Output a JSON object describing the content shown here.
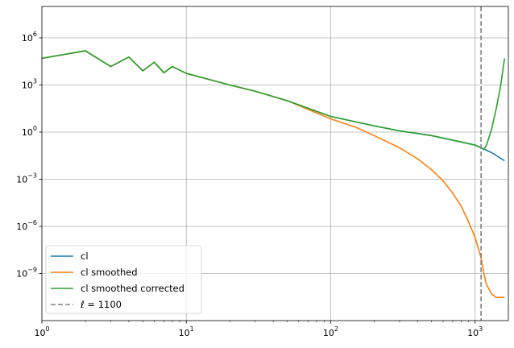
{
  "chart_data": {
    "type": "line",
    "title": "",
    "xlabel": "",
    "ylabel": "",
    "xscale": "log",
    "yscale": "log",
    "xlim": [
      1,
      1700
    ],
    "ylim": [
      1e-12,
      100000000.0
    ],
    "grid": true,
    "legend_position": "lower-left",
    "x_ticks": [
      {
        "value": 1,
        "base": "10",
        "exp": "0"
      },
      {
        "value": 10,
        "base": "10",
        "exp": "1"
      },
      {
        "value": 100,
        "base": "10",
        "exp": "2"
      },
      {
        "value": 1000,
        "base": "10",
        "exp": "3"
      }
    ],
    "y_ticks": [
      {
        "value": 1000000.0,
        "base": "10",
        "exp": "6"
      },
      {
        "value": 1000.0,
        "base": "10",
        "exp": "3"
      },
      {
        "value": 1,
        "base": "10",
        "exp": "0"
      },
      {
        "value": 0.001,
        "base": "10",
        "exp": "−3"
      },
      {
        "value": 1e-06,
        "base": "10",
        "exp": "−6"
      },
      {
        "value": 1e-09,
        "base": "10",
        "exp": "−9"
      }
    ],
    "vline": {
      "x": 1100,
      "label": "ℓ = 1100",
      "color": "#808080",
      "style": "dashed"
    },
    "series": [
      {
        "name": "cl",
        "color": "#1f77b4",
        "x": [
          1,
          2,
          3,
          4,
          5,
          6,
          7,
          8,
          10,
          20,
          30,
          50,
          100,
          200,
          300,
          500,
          1000,
          1100,
          1300,
          1600
        ],
        "y": [
          50000,
          150000,
          15000,
          60000,
          8000,
          28000,
          6000,
          15000,
          5500,
          1000,
          400,
          100,
          10,
          2.5,
          1.2,
          0.6,
          0.15,
          0.1,
          0.05,
          0.015
        ]
      },
      {
        "name": "cl smoothed",
        "color": "#ff7f0e",
        "x": [
          1,
          2,
          3,
          4,
          5,
          6,
          7,
          8,
          10,
          20,
          30,
          50,
          100,
          150,
          200,
          300,
          400,
          500,
          600,
          700,
          800,
          900,
          1000,
          1100,
          1150,
          1200,
          1300,
          1400,
          1600
        ],
        "y": [
          50000,
          150000,
          15000,
          60000,
          8000,
          28000,
          6000,
          15000,
          5500,
          1000,
          400,
          100,
          7,
          2,
          0.6,
          0.1,
          0.02,
          0.004,
          0.0008,
          0.00013,
          2e-05,
          2e-06,
          2e-07,
          1e-08,
          1e-09,
          2e-10,
          5e-11,
          3e-11,
          3e-11
        ]
      },
      {
        "name": "cl smoothed corrected",
        "color": "#2ca02c",
        "x": [
          1,
          2,
          3,
          4,
          5,
          6,
          7,
          8,
          10,
          20,
          30,
          50,
          100,
          200,
          300,
          500,
          1000,
          1100,
          1150,
          1200,
          1300,
          1400,
          1500,
          1600
        ],
        "y": [
          50000,
          150000,
          15000,
          60000,
          8000,
          28000,
          6000,
          15000,
          5500,
          1000,
          400,
          100,
          10,
          2.5,
          1.2,
          0.6,
          0.15,
          0.1,
          0.08,
          0.15,
          1.5,
          30,
          800,
          50000
        ]
      }
    ],
    "legend": [
      {
        "label": "cl",
        "color": "#1f77b4",
        "style": "solid"
      },
      {
        "label": "cl smoothed",
        "color": "#ff7f0e",
        "style": "solid"
      },
      {
        "label": "cl smoothed corrected",
        "color": "#2ca02c",
        "style": "solid"
      },
      {
        "label": "ℓ = 1100",
        "color": "#808080",
        "style": "dashed"
      }
    ]
  }
}
